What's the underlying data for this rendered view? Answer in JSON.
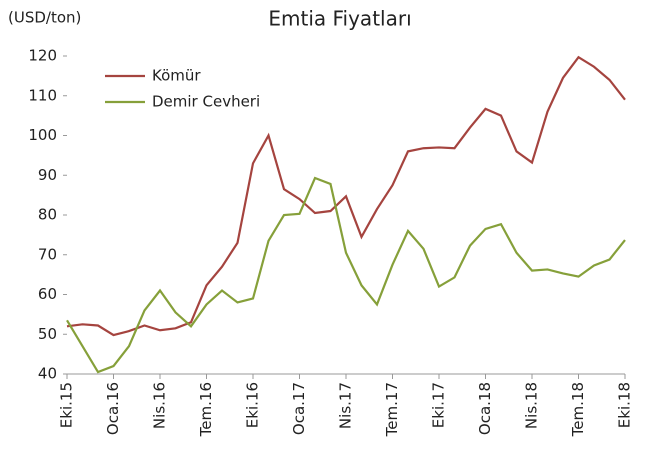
{
  "chart_data": {
    "type": "line",
    "title": "Emtia Fiyatları",
    "y_label": "(USD/ton)",
    "categories": [
      "Eki.15",
      null,
      null,
      "Oca.16",
      null,
      null,
      "Nis.16",
      null,
      null,
      "Tem.16",
      null,
      null,
      "Eki.16",
      null,
      null,
      "Oca.17",
      null,
      null,
      "Nis.17",
      null,
      null,
      "Tem.17",
      null,
      null,
      "Eki.17",
      null,
      null,
      "Oca.18",
      null,
      null,
      "Nis.18",
      null,
      null,
      "Tem.18",
      null,
      null,
      "Eki.18"
    ],
    "series": [
      {
        "name": "Kömür",
        "color": "#a5443f",
        "values": [
          52,
          52.5,
          52.2,
          49.8,
          50.8,
          52.2,
          51,
          51.5,
          53,
          62.3,
          67,
          73,
          93,
          100,
          86.5,
          84,
          80.5,
          81,
          84.7,
          74.5,
          81.5,
          87.5,
          96,
          96.8,
          97,
          96.8,
          102,
          106.7,
          105,
          96,
          93.2,
          106,
          114.5,
          119.7,
          117.3,
          114,
          109
        ]
      },
      {
        "name": "Demir Cevheri",
        "color": "#86a03a",
        "values": [
          53.5,
          47,
          40.5,
          42,
          47,
          56,
          61,
          55.5,
          52,
          57.5,
          61,
          58,
          59,
          73.5,
          80,
          80.3,
          89.3,
          87.8,
          70.5,
          62.3,
          57.5,
          67.5,
          76,
          71.5,
          62,
          64.3,
          72.3,
          76.5,
          77.7,
          70.5,
          66,
          66.3,
          65.3,
          64.5,
          67.3,
          68.8,
          73.7
        ]
      }
    ],
    "ylim": [
      40,
      120
    ],
    "yticks": [
      40,
      50,
      60,
      70,
      80,
      90,
      100,
      110,
      120
    ],
    "legend": "upper left"
  }
}
